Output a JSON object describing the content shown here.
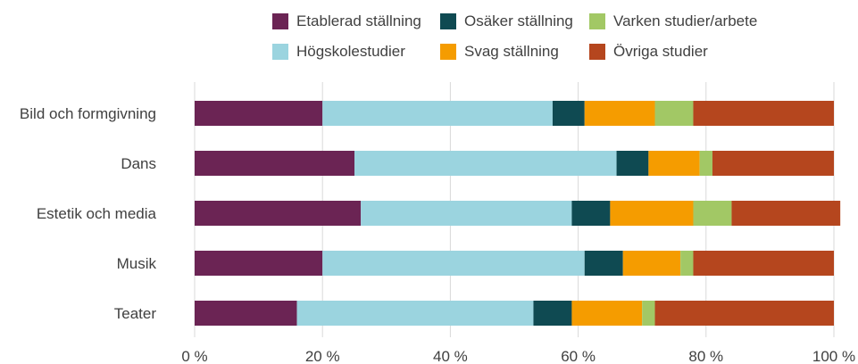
{
  "chart_data": {
    "type": "bar",
    "orientation": "horizontal",
    "stacked": true,
    "categories": [
      "Bild och formgivning",
      "Dans",
      "Estetik och media",
      "Musik",
      "Teater"
    ],
    "series": [
      {
        "name": "Etablerad ställning",
        "color": "#6b2454",
        "values": [
          20,
          25,
          26,
          20,
          16
        ]
      },
      {
        "name": "Högskolestudier",
        "color": "#9bd4df",
        "values": [
          36,
          41,
          33,
          41,
          37
        ]
      },
      {
        "name": "Osäker ställning",
        "color": "#0f4a52",
        "values": [
          5,
          5,
          6,
          6,
          6
        ]
      },
      {
        "name": "Svag ställning",
        "color": "#f59c00",
        "values": [
          11,
          8,
          13,
          9,
          11
        ]
      },
      {
        "name": "Varken studier/arbete",
        "color": "#a2c865",
        "values": [
          6,
          2,
          6,
          2,
          2
        ]
      },
      {
        "name": "Övriga studier",
        "color": "#b5461e",
        "values": [
          22,
          19,
          17,
          22,
          28
        ]
      }
    ],
    "xticks": [
      "0 %",
      "20 %",
      "40 %",
      "60 %",
      "80 %",
      "100 %"
    ],
    "xlim": [
      0,
      100
    ],
    "grid": "vertical",
    "legend": "top"
  }
}
